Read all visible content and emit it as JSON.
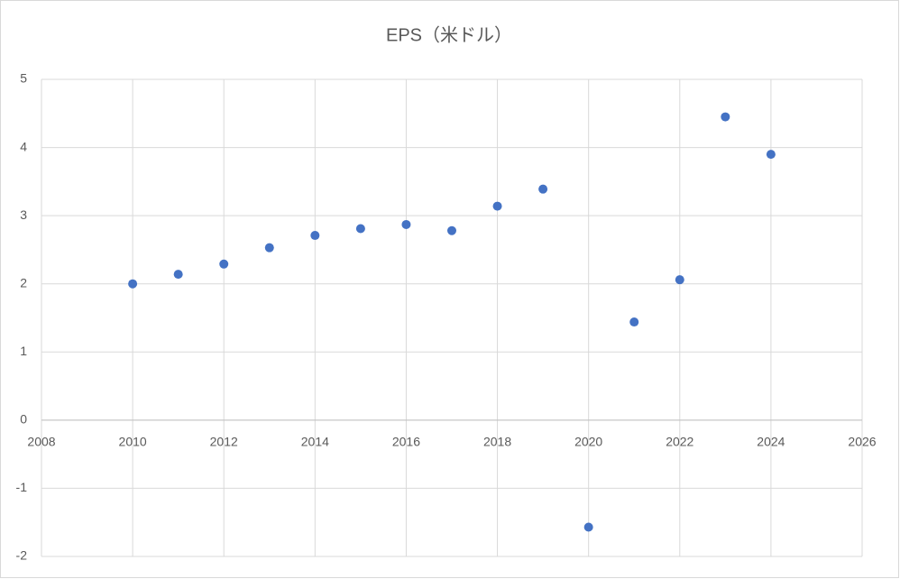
{
  "chart_data": {
    "type": "scatter",
    "title": "EPS（米ドル）",
    "x": [
      2010,
      2011,
      2012,
      2013,
      2014,
      2015,
      2016,
      2017,
      2018,
      2019,
      2020,
      2021,
      2022,
      2023,
      2024
    ],
    "series": [
      {
        "color": "#4472c4",
        "values": [
          2.0,
          2.14,
          2.29,
          2.53,
          2.71,
          2.81,
          2.87,
          2.78,
          3.14,
          3.39,
          -1.57,
          1.44,
          2.06,
          4.45,
          3.9
        ]
      }
    ],
    "xlim": [
      2008,
      2026
    ],
    "xticks": [
      2008,
      2010,
      2012,
      2014,
      2016,
      2018,
      2020,
      2022,
      2024,
      2026
    ],
    "ylim": [
      -2,
      5
    ],
    "yticks": [
      -2,
      -1,
      0,
      1,
      2,
      3,
      4,
      5
    ],
    "grid": true
  }
}
